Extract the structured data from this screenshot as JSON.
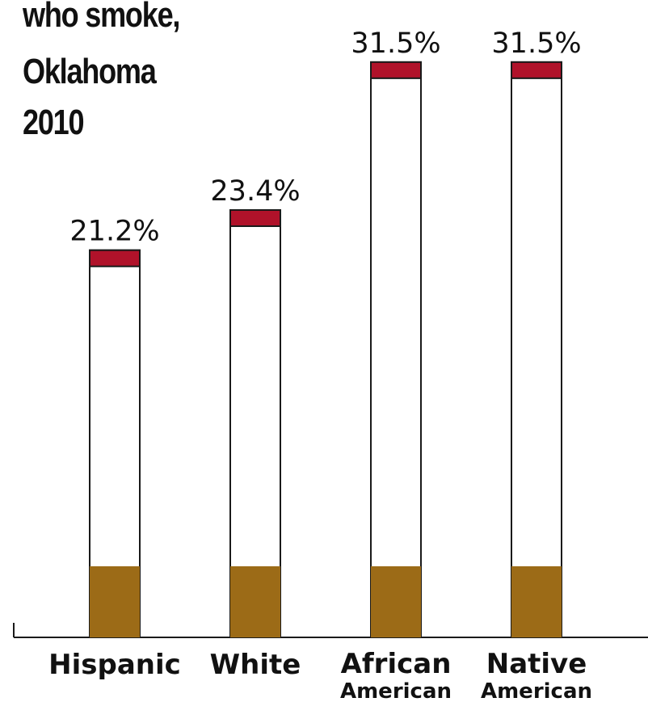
{
  "chart_data": {
    "type": "bar",
    "title_lines": [
      "who smoke,",
      "Oklahoma",
      "2010"
    ],
    "categories": [
      [
        "Hispanic"
      ],
      [
        "White"
      ],
      [
        "African",
        "American"
      ],
      [
        "Native",
        "American"
      ]
    ],
    "values": [
      21.2,
      23.4,
      31.5,
      31.5
    ],
    "value_labels": [
      "21.2%",
      "23.4%",
      "31.5%",
      "31.5%"
    ],
    "xlabel": "",
    "ylabel": "",
    "ylim": [
      0,
      32.6
    ],
    "grid": false,
    "legend": "none",
    "colors": {
      "filter": "#9c6b17",
      "paper": "#ffffff",
      "ember": "#b0122a",
      "outline": "#1a1a1a",
      "text": "#111111"
    }
  }
}
